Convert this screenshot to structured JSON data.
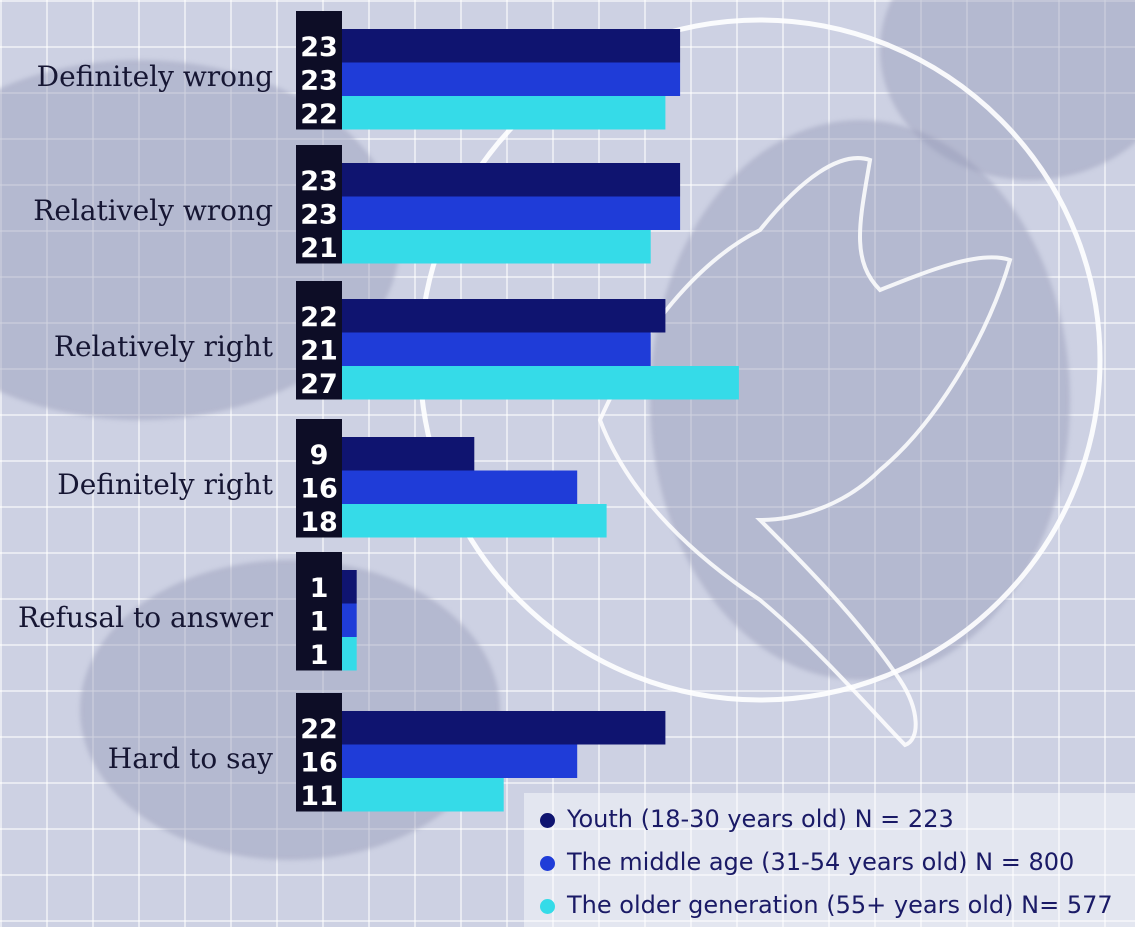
{
  "chart_data": {
    "type": "bar",
    "orientation": "horizontal",
    "categories": [
      "Definitely wrong",
      "Relatively wrong",
      "Relatively right",
      "Definitely right",
      "Refusal to answer",
      "Hard to say"
    ],
    "series": [
      {
        "name": "Youth (18-30 years old) N = 223",
        "color": "#0f1470",
        "values": [
          23,
          23,
          22,
          9,
          1,
          22
        ]
      },
      {
        "name": "The middle age  (31-54 years old) N = 800",
        "color": "#1f3cd8",
        "values": [
          23,
          23,
          21,
          16,
          1,
          16
        ]
      },
      {
        "name": "The older generation (55+ years old) N= 577",
        "color": "#35dbe8",
        "values": [
          22,
          21,
          27,
          18,
          1,
          11
        ]
      }
    ],
    "legend_position": "bottom-right",
    "data_labels": true,
    "grid": false
  },
  "colors": {
    "label_box": "#0d0d26"
  }
}
